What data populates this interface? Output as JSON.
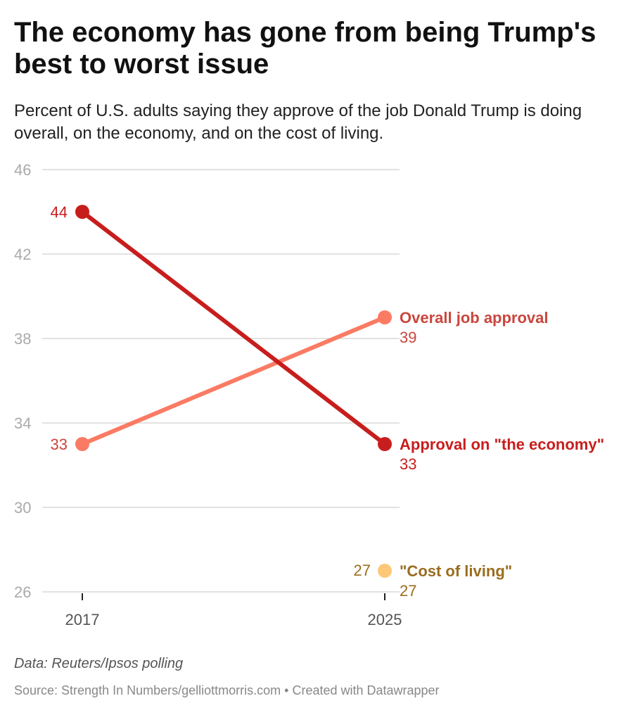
{
  "header": {
    "title": "The economy has gone from being Trump's best to worst issue",
    "subtitle": "Percent of U.S. adults saying they approve of the job Donald Trump is doing overall, on the economy, and on the cost of living."
  },
  "chart_data": {
    "type": "line",
    "title": "The economy has gone from being Trump's best to worst issue",
    "xlabel": "",
    "ylabel": "",
    "x": [
      "2017",
      "2025"
    ],
    "ylim": [
      26,
      46
    ],
    "yticks": [
      "46",
      "42",
      "38",
      "34",
      "30",
      "26"
    ],
    "grid": true,
    "series": [
      {
        "name": "Overall job approval",
        "values": [
          33,
          39
        ],
        "labels": [
          "33",
          "39"
        ],
        "line_color": "#fa7b63",
        "label_color": "#c9463d"
      },
      {
        "name": "Approval on \"the economy\"",
        "values": [
          44,
          33
        ],
        "labels": [
          "44",
          "33"
        ],
        "line_color": "#c71e1d",
        "label_color": "#c71e1d"
      },
      {
        "name": "\"Cost of living\"",
        "values": [
          null,
          27
        ],
        "labels": [
          "",
          "27"
        ],
        "line_color": "#fdc877",
        "label_color": "#9a6d1f"
      }
    ]
  },
  "footer": {
    "note": "Data: Reuters/Ipsos polling",
    "source": "Source: Strength In Numbers/gelliottmorris.com • Created with Datawrapper"
  }
}
